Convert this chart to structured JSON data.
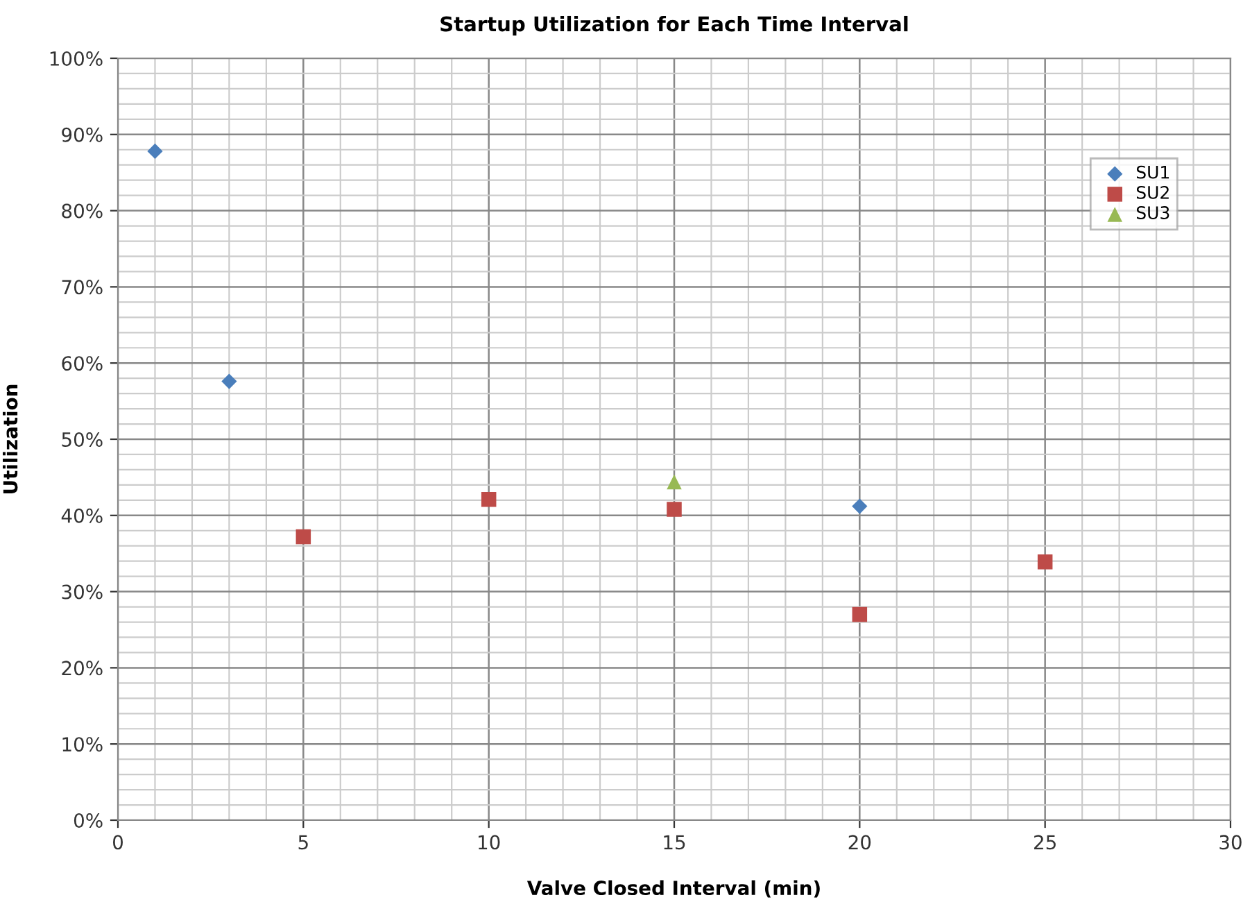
{
  "chart_data": {
    "type": "scatter",
    "title": "Startup Utilization for Each Time Interval",
    "xlabel": "Valve Closed Interval (min)",
    "ylabel": "Utilization",
    "series": [
      {
        "name": "SU1",
        "color": "#4a7ebb",
        "marker": "diamond",
        "x": [
          1,
          3,
          15,
          20
        ],
        "values": [
          87.8,
          57.6,
          null,
          41.2
        ]
      },
      {
        "name": "SU2",
        "color": "#be4b48",
        "marker": "square",
        "x": [
          5,
          10,
          15,
          20,
          25
        ],
        "values": [
          37.2,
          42.1,
          40.8,
          27.0,
          33.9
        ]
      },
      {
        "name": "SU3",
        "color": "#98b954",
        "marker": "triangle",
        "x": [
          15
        ],
        "values": [
          44.4
        ]
      }
    ],
    "xlim": [
      0,
      30
    ],
    "xticks": [
      0,
      5,
      10,
      15,
      20,
      25,
      30
    ],
    "ylim": [
      0,
      100
    ],
    "yticks": [
      {
        "value": 0,
        "label": "0%"
      },
      {
        "value": 10,
        "label": "10%"
      },
      {
        "value": 20,
        "label": "20%"
      },
      {
        "value": 30,
        "label": "30%"
      },
      {
        "value": 40,
        "label": "40%"
      },
      {
        "value": 50,
        "label": "50%"
      },
      {
        "value": 60,
        "label": "60%"
      },
      {
        "value": 70,
        "label": "70%"
      },
      {
        "value": 80,
        "label": "80%"
      },
      {
        "value": 90,
        "label": "90%"
      },
      {
        "value": 100,
        "label": "100%"
      }
    ],
    "grid": true,
    "legend": "top right"
  }
}
